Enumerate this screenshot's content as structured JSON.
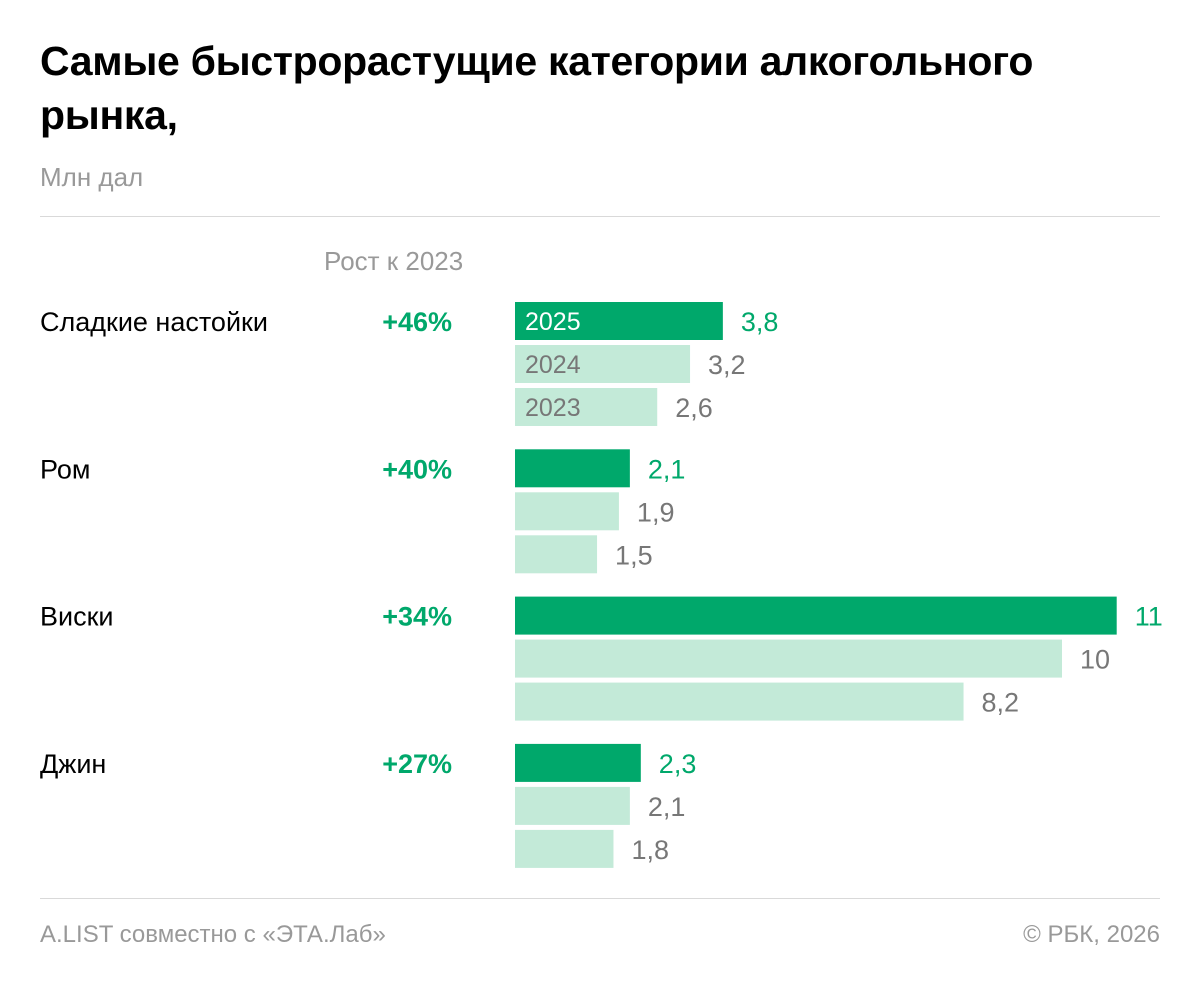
{
  "title": "Самые быстрорастущие категории алкогольного рынка,",
  "subtitle": "Млн дал",
  "growth_header": "Рост к 2023",
  "footer": {
    "source": "A.LIST совместно с «ЭТА.Лаб»",
    "copyright": "© РБК, 2026"
  },
  "colors": {
    "current": "#00a86b",
    "previous": "#c3ead8",
    "growth_text": "#00a86b",
    "value_text": "#777777"
  },
  "chart_data": {
    "type": "bar",
    "orientation": "horizontal",
    "title": "Самые быстрорастущие категории алкогольного рынка,",
    "unit": "Млн дал",
    "categories": [
      "Сладкие настойки",
      "Ром",
      "Виски",
      "Джин"
    ],
    "growth": [
      "+46%",
      "+40%",
      "+34%",
      "+27%"
    ],
    "series": [
      {
        "name": "2025",
        "values": [
          3.8,
          2.1,
          11,
          2.3
        ],
        "labels": [
          "3,8",
          "2,1",
          "11",
          "2,3"
        ]
      },
      {
        "name": "2024",
        "values": [
          3.2,
          1.9,
          10,
          2.1
        ],
        "labels": [
          "3,2",
          "1,9",
          "10",
          "2,1"
        ]
      },
      {
        "name": "2023",
        "values": [
          2.6,
          1.5,
          8.2,
          1.8
        ],
        "labels": [
          "2,6",
          "1,5",
          "8,2",
          "1,8"
        ]
      }
    ],
    "grid": false
  }
}
